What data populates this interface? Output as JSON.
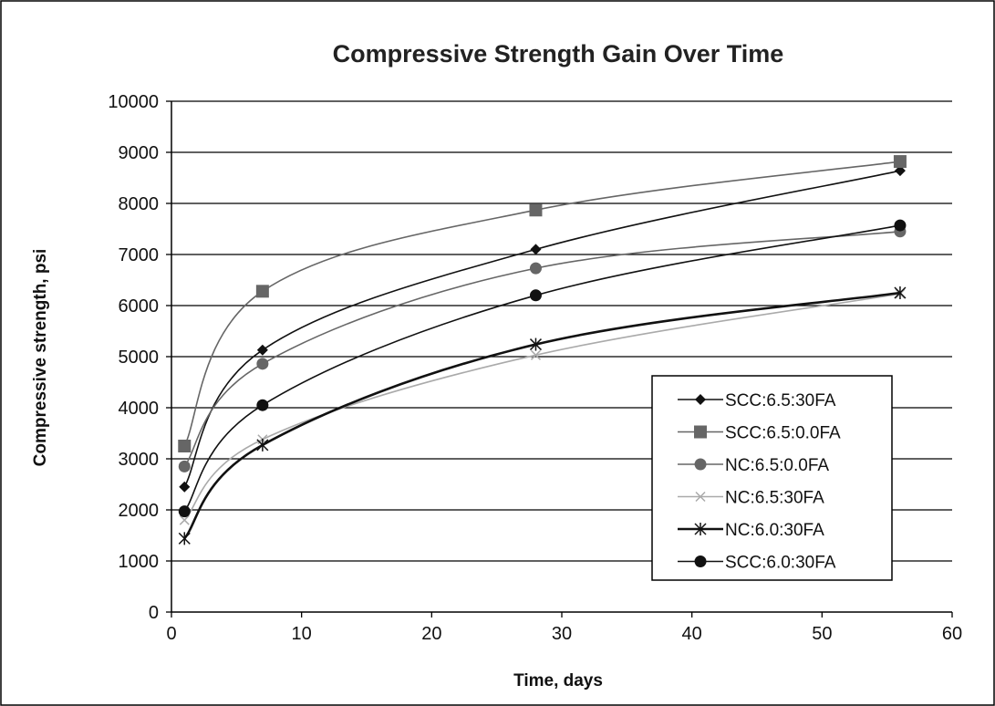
{
  "chart_data": {
    "type": "line",
    "title": "Compressive Strength Gain Over Time",
    "xlabel": "Time, days",
    "ylabel": "Compressive strength, psi",
    "xlim": [
      0,
      60
    ],
    "ylim": [
      0,
      10000
    ],
    "xticks": [
      0,
      10,
      20,
      30,
      40,
      50,
      60
    ],
    "yticks": [
      0,
      1000,
      2000,
      3000,
      4000,
      5000,
      6000,
      7000,
      8000,
      9000,
      10000
    ],
    "grid": "horizontal",
    "legend_position": "right",
    "x": [
      1,
      7,
      28,
      56
    ],
    "series": [
      {
        "name": "SCC:6.5:30FA",
        "values": [
          2450,
          5130,
          7100,
          8640
        ],
        "color": "#111111",
        "marker": "diamond"
      },
      {
        "name": "SCC:6.5:0.0FA",
        "values": [
          3250,
          6280,
          7870,
          8820
        ],
        "color": "#666666",
        "marker": "square"
      },
      {
        "name": "NC:6.5:0.0FA",
        "values": [
          2850,
          4860,
          6730,
          7450
        ],
        "color": "#666666",
        "marker": "circle"
      },
      {
        "name": "NC:6.5:30FA",
        "values": [
          1800,
          3380,
          5030,
          6230
        ],
        "color": "#aaaaaa",
        "marker": "x"
      },
      {
        "name": "NC:6.0:30FA",
        "values": [
          1440,
          3270,
          5240,
          6250
        ],
        "color": "#111111",
        "marker": "star"
      },
      {
        "name": "SCC:6.0:30FA",
        "values": [
          1970,
          4050,
          6200,
          7570
        ],
        "color": "#111111",
        "marker": "circle"
      }
    ]
  }
}
